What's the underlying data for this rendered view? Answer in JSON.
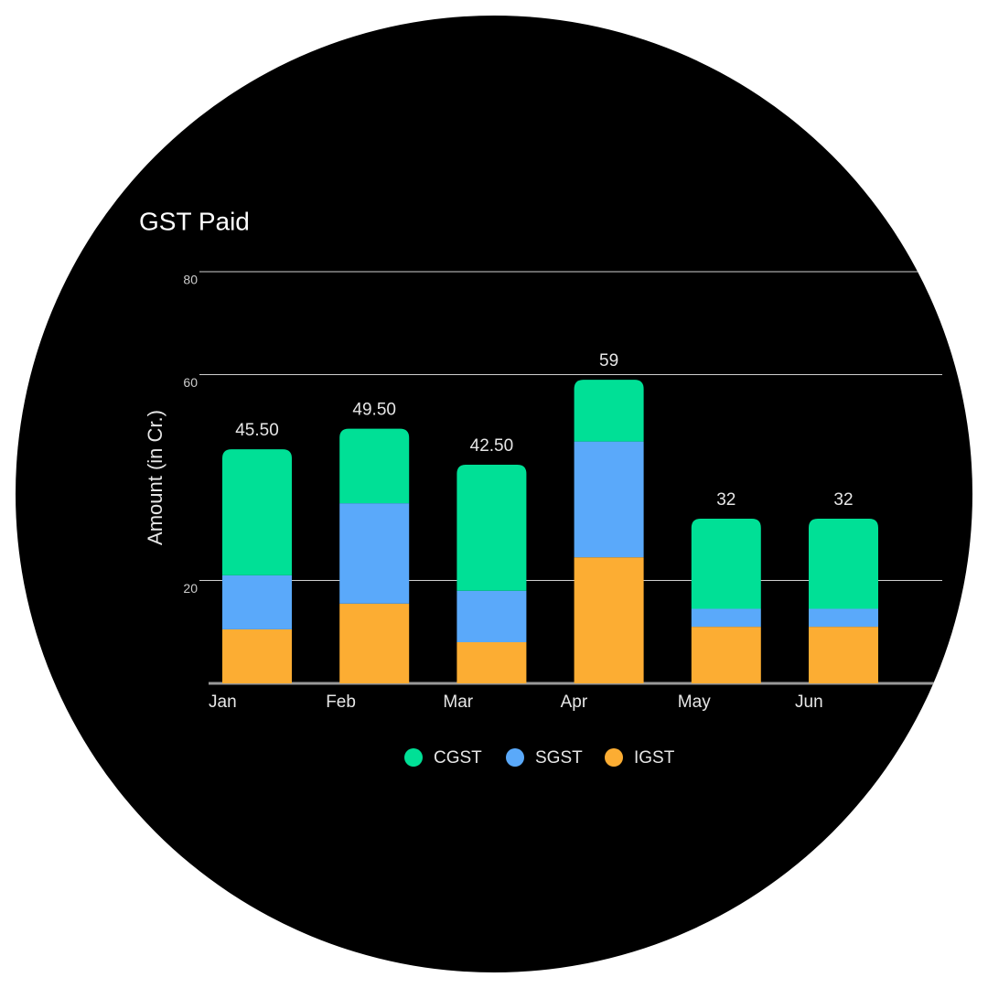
{
  "chart_data": {
    "type": "stacked_bar",
    "title": "GST Paid",
    "y_label": "Amount (in Cr.)",
    "categories": [
      "Jan",
      "Feb",
      "Mar",
      "Apr",
      "May",
      "Jun"
    ],
    "series": [
      {
        "name": "CGST",
        "color": "#00e096",
        "values": [
          24.5,
          14.5,
          24.5,
          12,
          17.5,
          17.5
        ]
      },
      {
        "name": "SGST",
        "color": "#5aa9fa",
        "values": [
          10.5,
          19.5,
          10,
          22.5,
          3.5,
          3.5
        ]
      },
      {
        "name": "IGST",
        "color": "#fcad33",
        "values": [
          10.5,
          15.5,
          8,
          24.5,
          11,
          11
        ]
      }
    ],
    "total_labels": [
      "45.50",
      "49.50",
      "42.50",
      "59",
      "32",
      "32"
    ],
    "ylim": [
      0,
      80
    ],
    "yticks": [
      20,
      60,
      80
    ],
    "grid": true
  }
}
